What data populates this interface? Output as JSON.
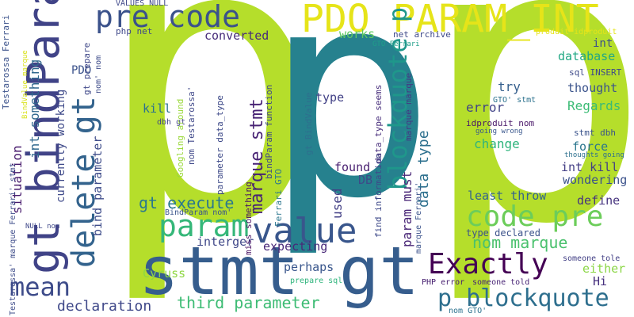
{
  "words": [
    {
      "text": "p",
      "color": "#b5de2b"
    },
    {
      "text": "p",
      "color": "#b5de2b"
    },
    {
      "text": "p",
      "color": "#26818e"
    },
    {
      "text": "stmt gt",
      "color": "#365d8d"
    },
    {
      "text": "PDO PARAM_INT",
      "color": "#e6e419"
    },
    {
      "text": "gt bindParam",
      "color": "#404387"
    },
    {
      "text": "pre code",
      "color": "#3b528b"
    },
    {
      "text": "delete gt",
      "color": "#33638d"
    },
    {
      "text": "value",
      "color": "#39568c"
    },
    {
      "text": "code pre",
      "color": "#6ccd5a"
    },
    {
      "text": "param",
      "color": "#35b779"
    },
    {
      "text": "Exactly",
      "color": "#440154"
    },
    {
      "text": "mean",
      "color": "#3e4c8a"
    },
    {
      "text": "p blockquote",
      "color": "#2e6f8e"
    },
    {
      "text": "blockquote p",
      "color": "#1f978b"
    },
    {
      "text": "gt execute",
      "color": "#2a788e"
    },
    {
      "text": "third parameter",
      "color": "#3dbc74"
    },
    {
      "text": "marque stmt",
      "color": "#482374"
    },
    {
      "text": "nom marque",
      "color": "#4ac16d"
    },
    {
      "text": "int something",
      "color": "#31688e"
    },
    {
      "text": "data type",
      "color": "#2d708e"
    },
    {
      "text": "param must",
      "color": "#482576"
    },
    {
      "text": "declaration",
      "color": "#3f4889"
    },
    {
      "text": "converted",
      "color": "#472c7a"
    },
    {
      "text": "works",
      "color": "#5ec962"
    },
    {
      "text": "database",
      "color": "#22a884"
    },
    {
      "text": "thought",
      "color": "#3a538b"
    },
    {
      "text": "error",
      "color": "#414487"
    },
    {
      "text": "try",
      "color": "#355f8d"
    },
    {
      "text": "Regards",
      "color": "#3bbb75"
    },
    {
      "text": "change",
      "color": "#2fb47c"
    },
    {
      "text": "force",
      "color": "#2a768e"
    },
    {
      "text": "int kill",
      "color": "#433e85"
    },
    {
      "text": "wondering",
      "color": "#3b528b"
    },
    {
      "text": "least throw",
      "color": "#33638d"
    },
    {
      "text": "define",
      "color": "#46337e"
    },
    {
      "text": "type declared",
      "color": "#3b528b"
    },
    {
      "text": "either",
      "color": "#8bd646"
    },
    {
      "text": "Hi",
      "color": "#46307e"
    },
    {
      "text": "Cyruss",
      "color": "#8fd744"
    },
    {
      "text": "perhaps",
      "color": "#39568c"
    },
    {
      "text": "expecting",
      "color": "#482878"
    },
    {
      "text": "interger",
      "color": "#3f4788"
    },
    {
      "text": "found",
      "color": "#481f70"
    },
    {
      "text": "DB",
      "color": "#3e4a89"
    },
    {
      "text": "used",
      "color": "#423f85"
    },
    {
      "text": "type",
      "color": "#424186"
    },
    {
      "text": "kill",
      "color": "#2c718e"
    },
    {
      "text": "PDO",
      "color": "#3b528b"
    },
    {
      "text": "int",
      "color": "#3c4f8a"
    },
    {
      "text": "situation",
      "color": "#481b6d"
    },
    {
      "text": "bind parameter",
      "color": "#3e4c8a"
    },
    {
      "text": "currently working",
      "color": "#3e4989"
    },
    {
      "text": "gt prepare",
      "color": "#3f4889"
    },
    {
      "text": "php net",
      "color": "#3f4889"
    },
    {
      "text": "net archive",
      "color": "#3e4989"
    },
    {
      "text": "sql INSERT",
      "color": "#3e4a89"
    },
    {
      "text": "GTO' stmt",
      "color": "#2c728e"
    },
    {
      "text": "idproduit nom",
      "color": "#481668"
    },
    {
      "text": "going wrong",
      "color": "#39568c"
    },
    {
      "text": "stmt dbh",
      "color": "#3a538b"
    },
    {
      "text": "thoughts going",
      "color": "#2d708e"
    },
    {
      "text": "someone tole",
      "color": "#423f85"
    },
    {
      "text": "PHP error",
      "color": "#482071"
    },
    {
      "text": "someone told",
      "color": "#482475"
    },
    {
      "text": "nom GTO'",
      "color": "#2c728e"
    },
    {
      "text": "prepare sql",
      "color": "#2fb47c"
    },
    {
      "text": "BindParam nom'",
      "color": "#3a548c"
    },
    {
      "text": "dbh gt",
      "color": "#414487"
    },
    {
      "text": "Googling around",
      "color": "#9bd93c"
    },
    {
      "text": "nom Testarossa'",
      "color": "#3f4889"
    },
    {
      "text": "parameter data_type",
      "color": "#3e4a89"
    },
    {
      "text": "miss something",
      "color": "#471063"
    },
    {
      "text": "Ferrari GTO",
      "color": "#2a768e"
    },
    {
      "text": "gt BindValue",
      "color": "#2e6f8e"
    },
    {
      "text": "bindParam function",
      "color": "#3f4889"
    },
    {
      "text": "data_type seems",
      "color": "#472d7b"
    },
    {
      "text": "find information",
      "color": "#3e4989"
    },
    {
      "text": "marque marque",
      "color": "#443983"
    },
    {
      "text": "marque Ferrari'",
      "color": "#3b528b"
    },
    {
      "text": "VALUES NULL",
      "color": "#3f4889"
    },
    {
      "text": "produit idproduit",
      "color": "#e5e419"
    },
    {
      "text": "GTO Ferrari",
      "color": "#1f9e89"
    },
    {
      "text": "nom' nom",
      "color": "#3e4c8a"
    },
    {
      "text": "Testarossa Ferrari",
      "color": "#3b528b"
    },
    {
      "text": "BindValue marque",
      "color": "#d8e219"
    },
    {
      "text": "Testarossa' marque Ferrari' stmt",
      "color": "#3e4c8a"
    },
    {
      "text": "NULL nom",
      "color": "#3f4889"
    }
  ]
}
